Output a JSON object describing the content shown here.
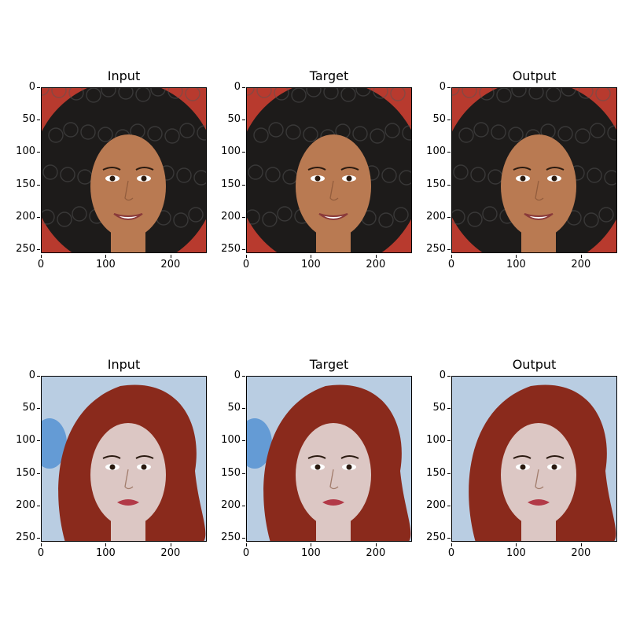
{
  "rows": [
    {
      "panels": [
        {
          "title": "Input",
          "image": "photo-face-dark-curly-hair-input"
        },
        {
          "title": "Target",
          "image": "photo-face-dark-curly-hair-target"
        },
        {
          "title": "Output",
          "image": "photo-face-dark-curly-hair-output"
        }
      ]
    },
    {
      "panels": [
        {
          "title": "Input",
          "image": "photo-face-red-hair-input"
        },
        {
          "title": "Target",
          "image": "photo-face-red-hair-target"
        },
        {
          "title": "Output",
          "image": "photo-face-red-hair-output"
        }
      ]
    }
  ],
  "axis": {
    "y_ticks": [
      "0",
      "50",
      "100",
      "150",
      "200",
      "250"
    ],
    "x_ticks": [
      "0",
      "100",
      "200"
    ]
  },
  "colors": {
    "row0_background": "#b83a2e",
    "row0_skin": "#b97a52",
    "row0_hair": "#1d1b1a",
    "row1_background": "#b9cde2",
    "row1_skin": "#dcc7c4",
    "row1_hair": "#8a2a1c"
  }
}
